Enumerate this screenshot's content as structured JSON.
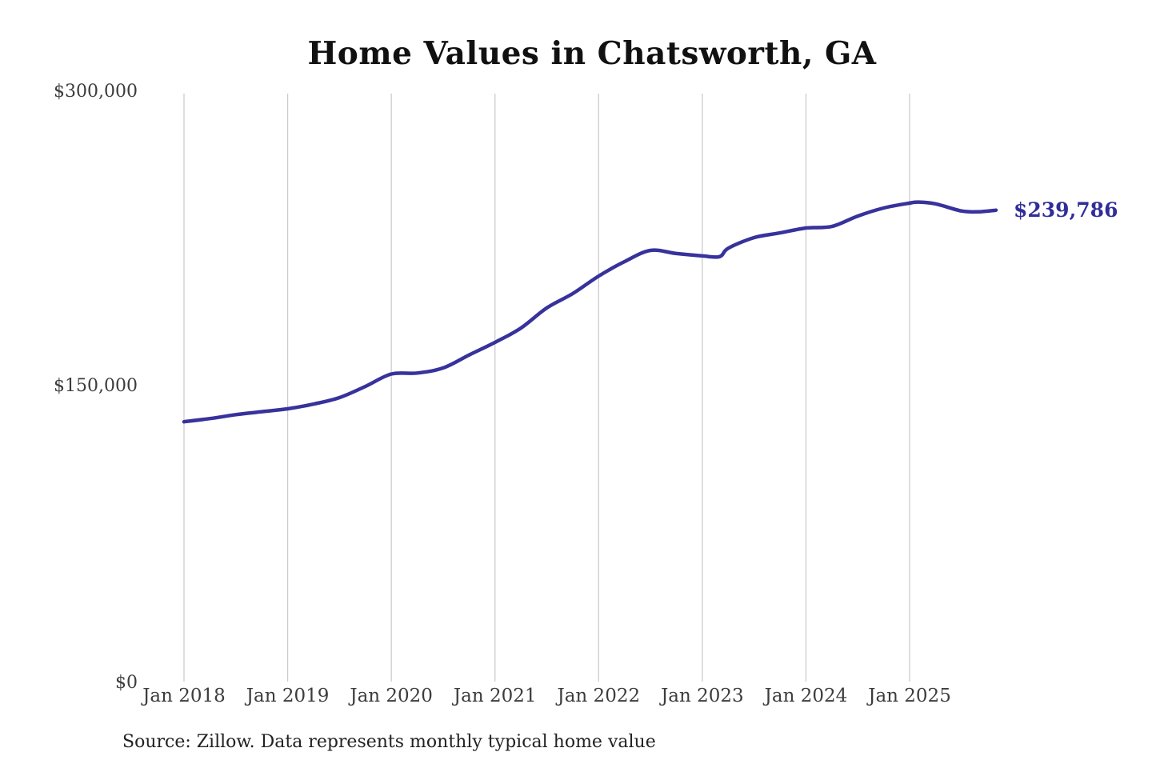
{
  "source_note": "Source: Zillow. Data represents monthly typical home value",
  "chart_data": {
    "type": "line",
    "title": "Home Values in Chatsworth, GA",
    "xlabel": "",
    "ylabel": "",
    "ylim": [
      0,
      300000
    ],
    "grid": "vertical-only",
    "legend": "none",
    "y_ticks": [
      "$0",
      "$150,000",
      "$300,000"
    ],
    "x_ticks": [
      "Jan 2018",
      "Jan 2019",
      "Jan 2020",
      "Jan 2021",
      "Jan 2022",
      "Jan 2023",
      "Jan 2024",
      "Jan 2025"
    ],
    "end_label": "$239,786",
    "latest_value": 239786,
    "colors": {
      "line": "#37329C",
      "end_label": "#312D99",
      "grid": "#CCCCCC",
      "tick_text": "#3C3C3C"
    },
    "series": [
      {
        "name": "Typical home value",
        "points": [
          [
            "2018-01",
            132000
          ],
          [
            "2018-04",
            133600
          ],
          [
            "2018-07",
            135600
          ],
          [
            "2018-10",
            137100
          ],
          [
            "2019-01",
            138600
          ],
          [
            "2019-04",
            141000
          ],
          [
            "2019-07",
            144300
          ],
          [
            "2019-10",
            150000
          ],
          [
            "2020-01",
            156300
          ],
          [
            "2020-04",
            156800
          ],
          [
            "2020-07",
            159400
          ],
          [
            "2020-10",
            166000
          ],
          [
            "2021-01",
            172400
          ],
          [
            "2021-04",
            179700
          ],
          [
            "2021-07",
            190000
          ],
          [
            "2021-10",
            197300
          ],
          [
            "2022-01",
            206200
          ],
          [
            "2022-04",
            213600
          ],
          [
            "2022-07",
            219300
          ],
          [
            "2022-10",
            217700
          ],
          [
            "2023-01",
            216500
          ],
          [
            "2023-03",
            216100
          ],
          [
            "2023-04",
            220400
          ],
          [
            "2023-07",
            225800
          ],
          [
            "2023-10",
            228200
          ],
          [
            "2024-01",
            230700
          ],
          [
            "2024-04",
            231500
          ],
          [
            "2024-07",
            236800
          ],
          [
            "2024-10",
            240900
          ],
          [
            "2025-01",
            243400
          ],
          [
            "2025-02",
            243900
          ],
          [
            "2025-04",
            243000
          ],
          [
            "2025-07",
            239400
          ],
          [
            "2025-09",
            239000
          ],
          [
            "2025-11",
            239786
          ]
        ]
      }
    ]
  }
}
